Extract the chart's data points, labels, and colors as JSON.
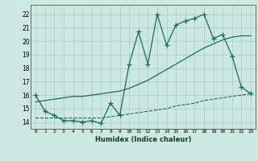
{
  "xlabel": "Humidex (Indice chaleur)",
  "bg_color": "#cce8e0",
  "grid_color": "#aacfc8",
  "line_color": "#1a6b5a",
  "xlim": [
    -0.5,
    23.5
  ],
  "ylim": [
    13.5,
    22.7
  ],
  "xticks": [
    0,
    1,
    2,
    3,
    4,
    5,
    6,
    7,
    8,
    9,
    10,
    11,
    12,
    13,
    14,
    15,
    16,
    17,
    18,
    19,
    20,
    21,
    22,
    23
  ],
  "yticks": [
    14,
    15,
    16,
    17,
    18,
    19,
    20,
    21,
    22
  ],
  "line1_y": [
    16.0,
    14.8,
    14.5,
    14.1,
    14.1,
    14.0,
    14.1,
    13.9,
    15.4,
    14.5,
    18.3,
    20.7,
    18.3,
    22.0,
    19.7,
    21.2,
    21.5,
    21.7,
    22.0,
    20.2,
    20.5,
    18.9,
    16.6,
    16.1
  ],
  "line2_y": [
    15.5,
    15.6,
    15.7,
    15.8,
    15.9,
    15.9,
    16.0,
    16.1,
    16.2,
    16.3,
    16.5,
    16.8,
    17.1,
    17.5,
    17.9,
    18.3,
    18.7,
    19.1,
    19.5,
    19.8,
    20.1,
    20.3,
    20.4,
    20.4
  ],
  "line3_y": [
    14.3,
    14.3,
    14.3,
    14.3,
    14.3,
    14.3,
    14.3,
    14.3,
    14.4,
    14.5,
    14.6,
    14.7,
    14.8,
    14.9,
    15.0,
    15.2,
    15.3,
    15.4,
    15.6,
    15.7,
    15.8,
    15.9,
    16.0,
    16.1
  ]
}
